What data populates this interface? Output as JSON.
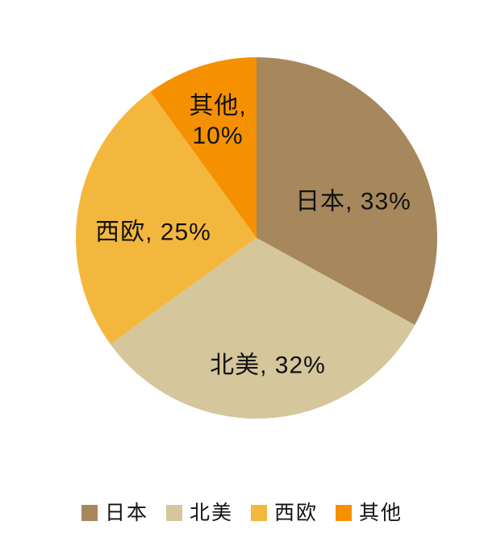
{
  "chart_data": {
    "type": "pie",
    "title": "",
    "categories": [
      "日本",
      "北美",
      "西欧",
      "其他"
    ],
    "values": [
      33,
      32,
      25,
      10
    ],
    "unit": "%",
    "colors": [
      "#A6885C",
      "#D5C69B",
      "#F4B73E",
      "#F59100"
    ],
    "start_angle_deg": 0,
    "direction": "clockwise",
    "legend_position": "bottom",
    "data_labels": [
      "日本, 33%",
      "北美, 32%",
      "西欧, 25%",
      "其他, 10%"
    ]
  },
  "slice_labels": {
    "japan": "日本, 33%",
    "north_america": "北美, 32%",
    "western_europe": "西欧, 25%",
    "other_line1": "其他,",
    "other_line2": "10%"
  },
  "legend": {
    "items": [
      {
        "label": "日本",
        "color": "#A6885C"
      },
      {
        "label": "北美",
        "color": "#D5C69B"
      },
      {
        "label": "西欧",
        "color": "#F4B73E"
      },
      {
        "label": "其他",
        "color": "#F59100"
      }
    ]
  }
}
